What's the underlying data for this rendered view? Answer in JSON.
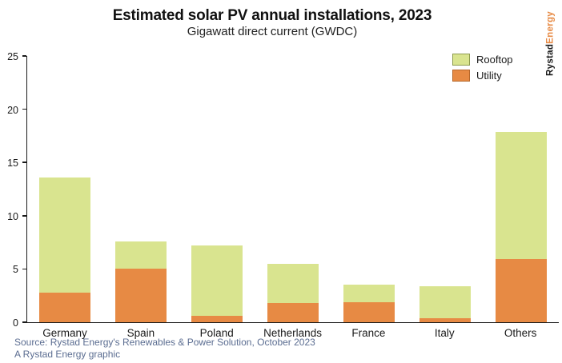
{
  "header": {
    "title": "Estimated solar PV annual installations, 2023",
    "subtitle": "Gigawatt direct current (GWDC)"
  },
  "logo": {
    "part1": "Rystad",
    "part2": "Energy",
    "part1_color": "#1a1a1a",
    "part2_color": "#e78a44"
  },
  "legend": [
    {
      "label": "Rooftop",
      "color": "#d9e48f",
      "border": "#8e9b4e"
    },
    {
      "label": "Utility",
      "color": "#e78a44",
      "border": "#b5672b"
    }
  ],
  "chart_data": {
    "type": "bar",
    "stacked": true,
    "title": "Estimated solar PV annual installations, 2023",
    "subtitle": "Gigawatt direct current (GWDC)",
    "categories": [
      "Germany",
      "Spain",
      "Poland",
      "Netherlands",
      "France",
      "Italy",
      "Others"
    ],
    "series": [
      {
        "name": "Utility",
        "color": "#e78a44",
        "values": [
          2.8,
          5.0,
          0.6,
          1.8,
          1.9,
          0.4,
          5.9
        ]
      },
      {
        "name": "Rooftop",
        "color": "#d9e48f",
        "values": [
          10.8,
          2.6,
          6.6,
          3.7,
          1.6,
          3.0,
          12.0
        ]
      }
    ],
    "totals": [
      13.6,
      7.6,
      7.2,
      5.5,
      3.5,
      3.4,
      17.9
    ],
    "xlabel": "",
    "ylabel": "",
    "ylim": [
      0,
      25
    ],
    "yticks": [
      0,
      5,
      10,
      15,
      20,
      25
    ],
    "grid": false,
    "legend_position": "top-right"
  },
  "footer": {
    "line1": "Source: Rystad Energy's Renewables & Power Solution, October 2023",
    "line2": "A Rystad Energy graphic",
    "color": "#5b6d91"
  }
}
